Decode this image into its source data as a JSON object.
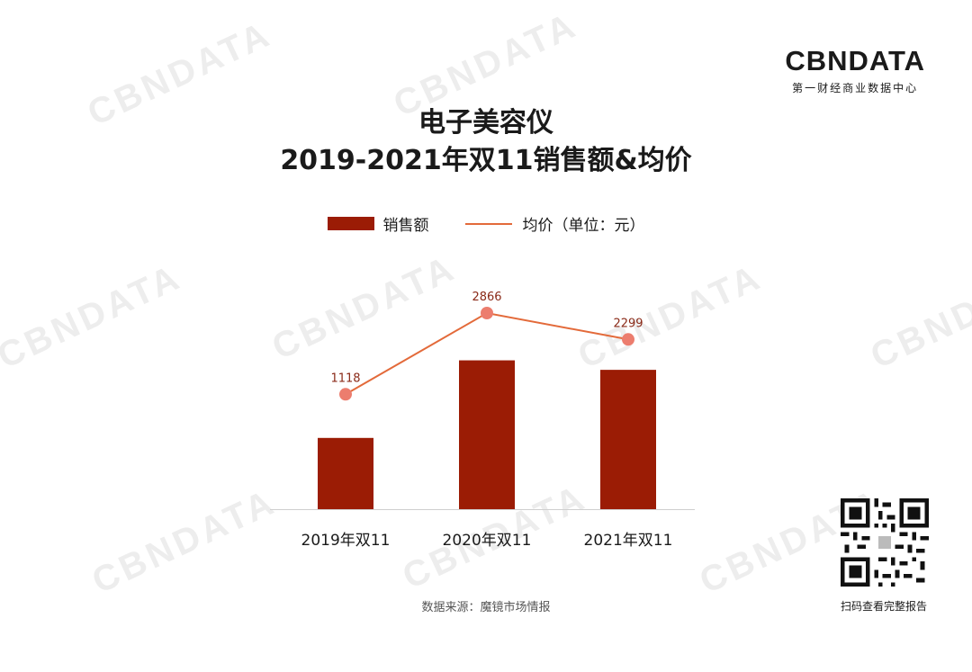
{
  "brand": {
    "name": "CBNDATA",
    "subtitle": "第一财经商业数据中心"
  },
  "title": {
    "line1": "电子美容仪",
    "line2": "2019-2021年双11销售额&均价"
  },
  "legend": {
    "bar_label": "销售额",
    "line_label": "均价（单位：元）"
  },
  "chart_data": {
    "type": "bar",
    "categories": [
      "2019年双11",
      "2020年双11",
      "2021年双11"
    ],
    "series": [
      {
        "name": "销售额",
        "type": "bar",
        "values": [
          0.45,
          0.94,
          0.88
        ],
        "color": "#9b1c05"
      },
      {
        "name": "均价（单位：元）",
        "type": "line",
        "values": [
          1118,
          2866,
          2299
        ],
        "color": "#e36a3a",
        "marker_color": "#ec7d6e"
      }
    ],
    "data_labels": [
      "1118",
      "2866",
      "2299"
    ],
    "title": "电子美容仪 2019-2021年双11销售额&均价",
    "grid": false,
    "legend_position": "top"
  },
  "source": "数据来源：魔镜市场情报",
  "qr_caption": "扫码查看完整报告"
}
